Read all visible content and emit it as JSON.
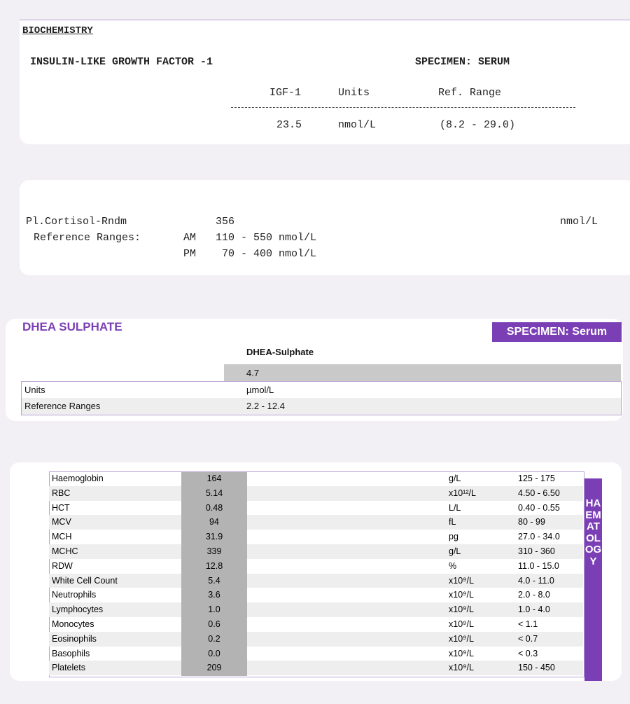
{
  "biochemistry": {
    "heading": "BIOCHEMISTRY",
    "test": "INSULIN-LIKE GROWTH FACTOR -1",
    "specimen": "SPECIMEN: SERUM",
    "columns": [
      "IGF-1",
      "Units",
      "Ref. Range"
    ],
    "row": [
      "23.5",
      "nmol/L",
      "(8.2 - 29.0)"
    ]
  },
  "cortisol": {
    "name": "Pl.Cortisol-Rndm",
    "value": "356",
    "unit": "nmol/L",
    "ref_label": "Reference Ranges:",
    "ranges": [
      [
        "AM",
        "110 - 550 nmol/L"
      ],
      [
        "PM",
        "70 - 400 nmol/L"
      ]
    ]
  },
  "dhea": {
    "title": "DHEA SULPHATE",
    "specimen": "SPECIMEN: Serum",
    "column": "DHEA-Sulphate",
    "value": "4.7",
    "rows": [
      [
        "Units",
        "µmol/L"
      ],
      [
        "Reference Ranges",
        "2.2 - 12.4"
      ]
    ]
  },
  "haematology": {
    "side_label": "HAEMATOLOGY",
    "rows": [
      [
        "Haemoglobin",
        "164",
        "g/L",
        "125 - 175"
      ],
      [
        "RBC",
        "5.14",
        "x10¹²/L",
        "4.50 - 6.50"
      ],
      [
        "HCT",
        "0.48",
        "L/L",
        "0.40 - 0.55"
      ],
      [
        "MCV",
        "94",
        "fL",
        "80 - 99"
      ],
      [
        "MCH",
        "31.9",
        "pg",
        "27.0 - 34.0"
      ],
      [
        "MCHC",
        "339",
        "g/L",
        "310 - 360"
      ],
      [
        "RDW",
        "12.8",
        "%",
        "11.0 - 15.0"
      ],
      [
        "White Cell Count",
        "5.4",
        "x10⁹/L",
        "4.0 - 11.0"
      ],
      [
        "Neutrophils",
        "3.6",
        "x10⁹/L",
        "2.0 - 8.0"
      ],
      [
        "Lymphocytes",
        "1.0",
        "x10⁹/L",
        "1.0 - 4.0"
      ],
      [
        "Monocytes",
        "0.6",
        "x10⁹/L",
        "< 1.1"
      ],
      [
        "Eosinophils",
        "0.2",
        "x10⁹/L",
        "< 0.7"
      ],
      [
        "Basophils",
        "0.0",
        "x10⁹/L",
        "< 0.3"
      ],
      [
        "Platelets",
        "209",
        "x10⁹/L",
        "150 - 450"
      ]
    ]
  }
}
